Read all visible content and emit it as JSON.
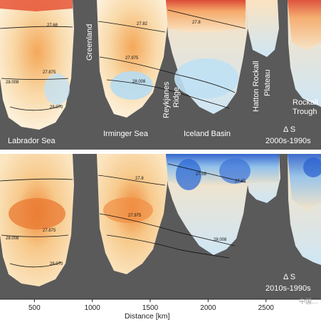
{
  "chart_data": {
    "type": "heatmap",
    "xlabel": "Distance [km]",
    "x_ticks": [
      500,
      1000,
      1500,
      2000,
      2500
    ],
    "xlim": [
      0,
      2900
    ],
    "regions": [
      "Labrador Sea",
      "Greenland",
      "Irminger Sea",
      "Reykjanes Ridge",
      "Iceland Basin",
      "Hatton Rockall Plateau",
      "Rockall Trough"
    ],
    "isopycnals": [
      "27.68",
      "27.8",
      "27.82",
      "27.875",
      "27.975",
      "28.008",
      "28.070",
      "27.65",
      "27.88"
    ],
    "panels": [
      {
        "name": "2000s-1990s",
        "label": "Δ S",
        "sublabel": "2000s-1990s",
        "anomaly_by_distance_km": [
          [
            100,
            0.03
          ],
          [
            300,
            0.05
          ],
          [
            500,
            0.05
          ],
          [
            700,
            0.04
          ],
          [
            850,
            0.02
          ],
          [
            1050,
            0.04
          ],
          [
            1250,
            0.05
          ],
          [
            1500,
            0.03
          ],
          [
            1700,
            0.0
          ],
          [
            1850,
            0.05
          ],
          [
            2050,
            0.08
          ],
          [
            2300,
            0.08
          ],
          [
            2500,
            0.07
          ],
          [
            2650,
            0.03
          ],
          [
            2800,
            0.05
          ]
        ]
      },
      {
        "name": "2010s-1990s",
        "label": "Δ S",
        "sublabel": "2010s-1990s",
        "anomaly_by_distance_km": [
          [
            100,
            0.03
          ],
          [
            300,
            0.06
          ],
          [
            500,
            0.06
          ],
          [
            700,
            0.05
          ],
          [
            850,
            0.03
          ],
          [
            1050,
            0.04
          ],
          [
            1250,
            0.04
          ],
          [
            1500,
            0.01
          ],
          [
            1700,
            -0.05
          ],
          [
            1850,
            -0.06
          ],
          [
            2050,
            -0.07
          ],
          [
            2300,
            -0.08
          ],
          [
            2500,
            -0.07
          ],
          [
            2650,
            -0.05
          ],
          [
            2800,
            -0.02
          ]
        ]
      }
    ]
  },
  "labels": {
    "labrador": "Labrador Sea",
    "greenland": "Greenland",
    "irminger": "Irminger Sea",
    "reykjanes_1": "Reykjanes",
    "reykjanes_2": "Ridge",
    "iceland": "Iceland Basin",
    "hatton_1": "Hatton Rockall",
    "hatton_2": "Plateau",
    "rockall_1": "Rockall",
    "rockall_2": "Trough"
  },
  "watermark": "中国..."
}
